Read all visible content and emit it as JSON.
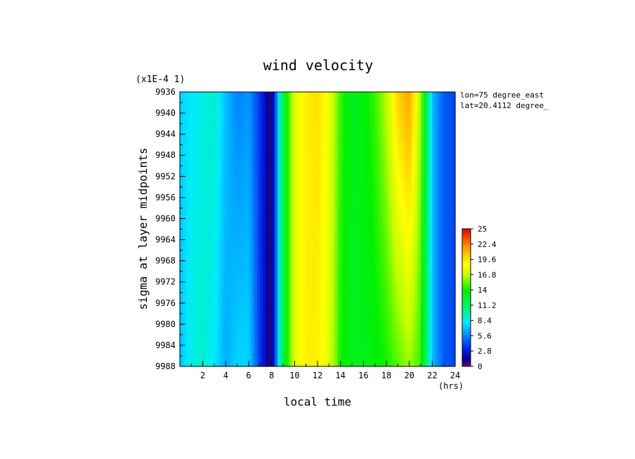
{
  "chart_data": {
    "type": "heatmap",
    "title": "wind velocity",
    "xlabel": "local time",
    "ylabel": "sigma at layer midpoints",
    "x_unit": "(hrs)",
    "y_scale_note": "(x1E-4 1)",
    "annotations": [
      "lon=75 degree_east",
      "lat=20.4112 degree_"
    ],
    "xlim": [
      0,
      24
    ],
    "ylim": [
      9936,
      9988
    ],
    "y_inverted": true,
    "x_ticks": [
      2,
      4,
      6,
      8,
      10,
      12,
      14,
      16,
      18,
      20,
      22,
      24
    ],
    "y_ticks": [
      9936,
      9940,
      9944,
      9948,
      9952,
      9956,
      9960,
      9964,
      9968,
      9972,
      9976,
      9980,
      9984,
      9988
    ],
    "colorbar": {
      "min": 0,
      "max": 25,
      "tick_labels": [
        "25",
        "22.4",
        "19.6",
        "16.8",
        "14",
        "11.2",
        "8.4",
        "5.6",
        "2.8",
        "0"
      ]
    },
    "x": [
      0,
      1,
      2,
      3,
      4,
      5,
      6,
      7,
      8,
      9,
      10,
      11,
      12,
      13,
      14,
      15,
      16,
      17,
      18,
      19,
      20,
      21,
      22,
      23,
      24
    ],
    "y": [
      9936,
      9988
    ],
    "values": [
      [
        7.5,
        8.0,
        8.5,
        9.0,
        7.0,
        5.5,
        6.0,
        3.5,
        0.5,
        12.0,
        17.5,
        19.0,
        19.5,
        18.0,
        14.5,
        13.0,
        13.5,
        14.5,
        16.5,
        20.0,
        21.5,
        16.0,
        7.0,
        4.5,
        4.0
      ],
      [
        7.0,
        8.5,
        9.0,
        8.0,
        6.5,
        7.5,
        7.5,
        3.5,
        0.5,
        12.0,
        17.5,
        19.0,
        19.0,
        17.5,
        14.0,
        13.0,
        13.0,
        13.5,
        14.0,
        15.0,
        16.0,
        14.5,
        7.0,
        4.5,
        4.0
      ]
    ]
  }
}
